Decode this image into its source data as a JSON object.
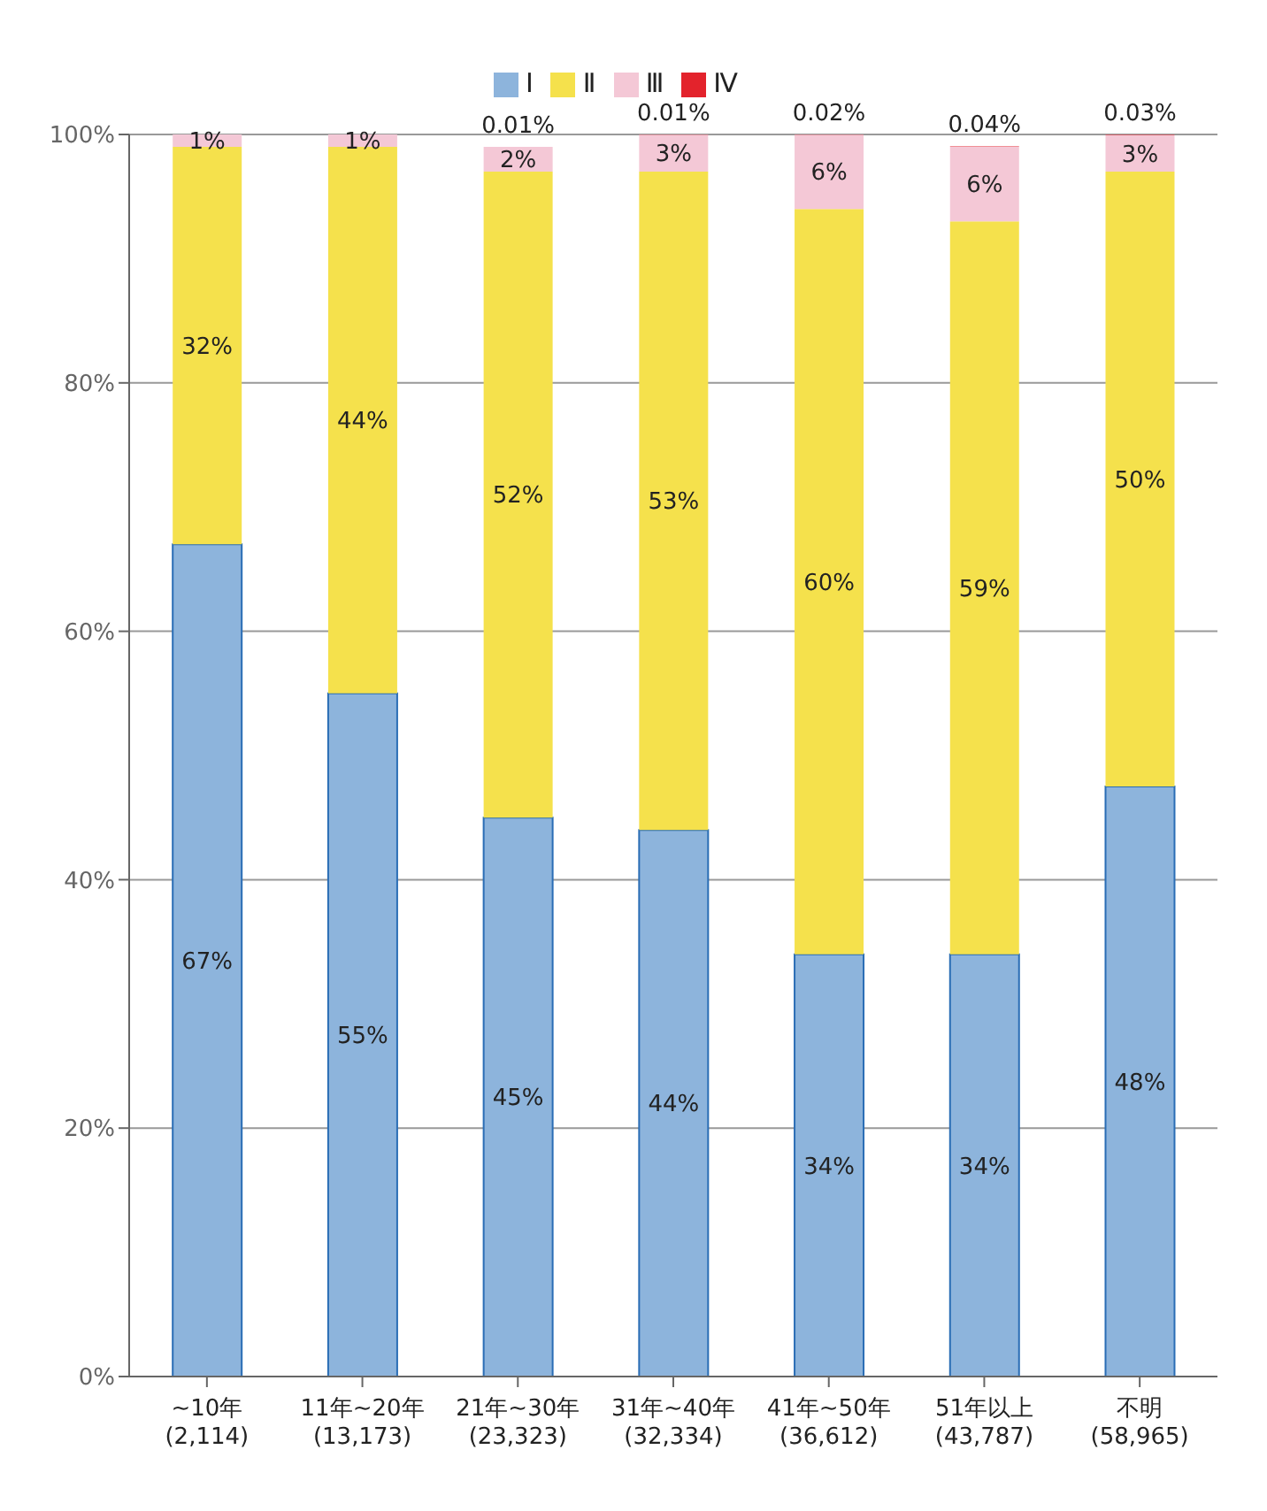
{
  "chart_data": {
    "type": "bar",
    "stacked": true,
    "categories": [
      "~10年\n(2,114)",
      "11年~20年\n(13,173)",
      "21年~30年\n(23,323)",
      "31年~40年\n(32,334)",
      "41年~50年\n(36,612)",
      "51年以上\n(43,787)",
      "不明\n(58,965)"
    ],
    "series": [
      {
        "name": "Ⅰ",
        "color": "#8db4dc",
        "values": [
          67,
          55,
          45,
          44,
          34,
          34,
          47.5
        ],
        "value_labels": [
          "67%",
          "55%",
          "45%",
          "44%",
          "34%",
          "34%",
          "48%"
        ]
      },
      {
        "name": "Ⅱ",
        "color": "#f5e14c",
        "values": [
          32,
          44,
          52,
          53,
          60,
          59,
          49.5
        ],
        "value_labels": [
          "32%",
          "44%",
          "52%",
          "53%",
          "60%",
          "59%",
          "50%"
        ]
      },
      {
        "name": "Ⅲ",
        "color": "#f4c8d6",
        "values": [
          1,
          1,
          2,
          2.99,
          5.98,
          6,
          2.97
        ],
        "value_labels": [
          "1%",
          "1%",
          "2%",
          "3%",
          "6%",
          "6%",
          "3%"
        ]
      },
      {
        "name": "Ⅳ",
        "color": "#e3232c",
        "values": [
          null,
          null,
          0.01,
          0.01,
          0.02,
          0.04,
          0.03
        ],
        "value_labels": [
          null,
          null,
          "0.01%",
          "0.01%",
          "0.02%",
          "0.04%",
          "0.03%"
        ]
      }
    ],
    "ylim": [
      0,
      100
    ],
    "yticks": [
      {
        "value": 0,
        "label": "0%"
      },
      {
        "value": 20,
        "label": "20%"
      },
      {
        "value": 40,
        "label": "40%"
      },
      {
        "value": 60,
        "label": "60%"
      },
      {
        "value": 80,
        "label": "80%"
      },
      {
        "value": 100,
        "label": "100%"
      }
    ],
    "grid": "y",
    "legend": "top"
  }
}
